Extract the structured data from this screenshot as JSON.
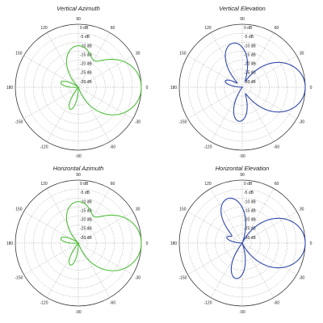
{
  "colors": {
    "green": "#4fbf3a",
    "blue": "#2f47a8"
  },
  "chart_data": [
    {
      "type": "polar",
      "title": "Vertical Azimuth",
      "color": "#4fbf3a",
      "rlim": [
        -35,
        0
      ],
      "radial_ticks": [
        "0 dB",
        "-5 dB",
        "-10 dB",
        "-15 dB",
        "-20 dB",
        "-25 dB",
        "-30 dB"
      ],
      "angle_labels": [
        "0",
        "30",
        "60",
        "90",
        "120",
        "150",
        "180",
        "-150",
        "-120",
        "-90",
        "-60",
        "-30"
      ],
      "lobes": [
        {
          "dir": 0,
          "peak_db": 0,
          "width_deg": 50
        },
        {
          "dir": 90,
          "peak_db": -12,
          "width_deg": 38
        },
        {
          "dir": 165,
          "peak_db": -25,
          "width_deg": 26
        },
        {
          "dir": -110,
          "peak_db": -22,
          "width_deg": 22
        }
      ]
    },
    {
      "type": "polar",
      "title": "Vertical Elevation",
      "color": "#2f47a8",
      "rlim": [
        -35,
        0
      ],
      "radial_ticks": [
        "0 dB",
        "-5 dB",
        "-10 dB",
        "-15 dB",
        "-20 dB",
        "-25 dB",
        "-30 dB"
      ],
      "angle_labels": [
        "0",
        "30",
        "60",
        "90",
        "120",
        "150",
        "180",
        "-150",
        "-120",
        "-90",
        "-60",
        "-30"
      ],
      "lobes": [
        {
          "dir": 0,
          "peak_db": 0,
          "width_deg": 44
        },
        {
          "dir": 102,
          "peak_db": -10,
          "width_deg": 30
        },
        {
          "dir": 160,
          "peak_db": -25,
          "width_deg": 24
        },
        {
          "dir": -95,
          "peak_db": -16,
          "width_deg": 28
        }
      ]
    },
    {
      "type": "polar",
      "title": "Horizontal Azimuth",
      "color": "#4fbf3a",
      "rlim": [
        -35,
        0
      ],
      "radial_ticks": [
        "0 dB",
        "-5 dB",
        "-10 dB",
        "-15 dB",
        "-20 dB",
        "-25 dB",
        "-30 dB"
      ],
      "angle_labels": [
        "0",
        "30",
        "60",
        "90",
        "120",
        "150",
        "180",
        "-150",
        "-120",
        "-90",
        "-60",
        "-30"
      ],
      "lobes": [
        {
          "dir": 0,
          "peak_db": 0,
          "width_deg": 50
        },
        {
          "dir": 90,
          "peak_db": -12,
          "width_deg": 38
        },
        {
          "dir": 165,
          "peak_db": -25,
          "width_deg": 26
        },
        {
          "dir": -110,
          "peak_db": -22,
          "width_deg": 22
        }
      ]
    },
    {
      "type": "polar",
      "title": "Horizontal Elevation",
      "color": "#2f47a8",
      "rlim": [
        -35,
        0
      ],
      "radial_ticks": [
        "0 dB",
        "-5 dB",
        "-10 dB",
        "-15 dB",
        "-20 dB",
        "-25 dB",
        "-30 dB"
      ],
      "angle_labels": [
        "0",
        "30",
        "60",
        "90",
        "120",
        "150",
        "180",
        "-150",
        "-120",
        "-90",
        "-60",
        "-30"
      ],
      "lobes": [
        {
          "dir": 0,
          "peak_db": 0,
          "width_deg": 44
        },
        {
          "dir": 108,
          "peak_db": -9,
          "width_deg": 30
        },
        {
          "dir": 160,
          "peak_db": -26,
          "width_deg": 24
        },
        {
          "dir": -100,
          "peak_db": -15,
          "width_deg": 26
        }
      ]
    }
  ]
}
